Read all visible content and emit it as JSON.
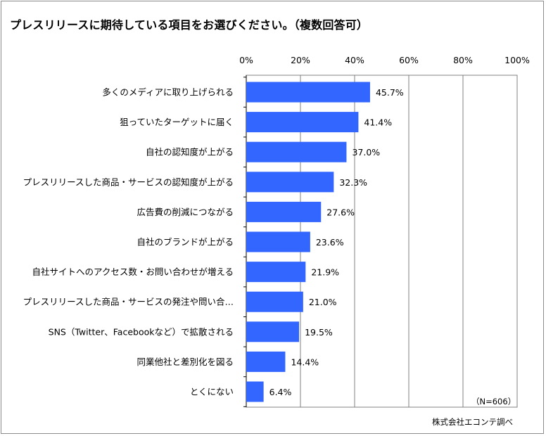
{
  "title": "プレスリリースに期待している項目をお選びください。（複数回答可）",
  "sample_note": "（N=606）",
  "source": "株式会社エコンテ調べ",
  "colors": {
    "bar": "#3366ff",
    "grid": "#808080",
    "axis": "#000000"
  },
  "chart_data": {
    "type": "bar",
    "orientation": "horizontal",
    "title": "プレスリリースに期待している項目をお選びください。（複数回答可）",
    "xlabel": "",
    "ylabel": "",
    "xlim": [
      0,
      100
    ],
    "x_ticks": [
      0,
      20,
      40,
      60,
      80,
      100
    ],
    "x_tick_labels": [
      "0%",
      "20%",
      "40%",
      "60%",
      "80%",
      "100%"
    ],
    "axis_position": "top",
    "grid": true,
    "categories": [
      "多くのメディアに取り上げられる",
      "狙っていたターゲットに届く",
      "自社の認知度が上がる",
      "プレスリリースした商品・サービスの認知度が上がる",
      "広告費の削減につながる",
      "自社のブランドが上がる",
      "自社サイトへのアクセス数・お問い合わせが増える",
      "プレスリリースした商品・サービスの発注や問い合…",
      "SNS（Twitter、Facebookなど）で拡散される",
      "同業他社と差別化を図る",
      "とくにない"
    ],
    "values": [
      45.7,
      41.4,
      37.0,
      32.3,
      27.6,
      23.6,
      21.9,
      21.0,
      19.5,
      14.4,
      6.4
    ],
    "value_labels": [
      "45.7%",
      "41.4%",
      "37.0%",
      "32.3%",
      "27.6%",
      "23.6%",
      "21.9%",
      "21.0%",
      "19.5%",
      "14.4%",
      "6.4%"
    ]
  }
}
